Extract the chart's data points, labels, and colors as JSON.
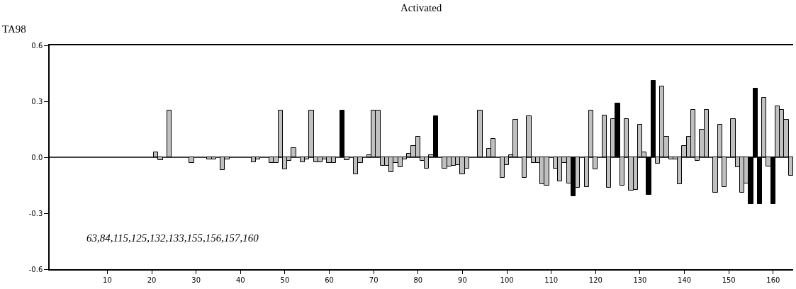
{
  "chart_data": {
    "type": "bar",
    "title": "Activated",
    "ylabel": "TA98",
    "x": [
      1,
      2,
      3,
      4,
      5,
      6,
      7,
      8,
      9,
      10,
      11,
      12,
      13,
      14,
      15,
      16,
      17,
      18,
      19,
      20,
      21,
      22,
      23,
      24,
      25,
      26,
      27,
      28,
      29,
      30,
      31,
      32,
      33,
      34,
      35,
      36,
      37,
      38,
      39,
      40,
      41,
      42,
      43,
      44,
      45,
      46,
      47,
      48,
      49,
      50,
      51,
      52,
      53,
      54,
      55,
      56,
      57,
      58,
      59,
      60,
      61,
      62,
      63,
      64,
      65,
      66,
      67,
      68,
      69,
      70,
      71,
      72,
      73,
      74,
      75,
      76,
      77,
      78,
      79,
      80,
      81,
      82,
      83,
      84,
      85,
      86,
      87,
      88,
      89,
      90,
      91,
      92,
      93,
      94,
      95,
      96,
      97,
      98,
      99,
      100,
      101,
      102,
      103,
      104,
      105,
      106,
      107,
      108,
      109,
      110,
      111,
      112,
      113,
      114,
      115,
      116,
      117,
      118,
      119,
      120,
      121,
      122,
      123,
      124,
      125,
      126,
      127,
      128,
      129,
      130,
      131,
      132,
      133,
      134,
      135,
      136,
      137,
      138,
      139,
      140,
      141,
      142,
      143,
      144,
      145,
      146,
      147,
      148,
      149,
      150,
      151,
      152,
      153,
      154,
      155,
      156,
      157,
      158,
      159,
      160,
      161,
      162,
      163,
      164
    ],
    "values": [
      0,
      0,
      0,
      0,
      0,
      0,
      0,
      0,
      0,
      0,
      0,
      0,
      0,
      0,
      0,
      0,
      0,
      0,
      0,
      0,
      0.025,
      -0.015,
      0,
      0.25,
      0,
      0,
      0,
      0,
      -0.03,
      0,
      0,
      0,
      -0.01,
      -0.01,
      0,
      -0.07,
      -0.01,
      0,
      0,
      0,
      0,
      0,
      -0.025,
      -0.01,
      0,
      0,
      -0.03,
      -0.03,
      0.25,
      -0.065,
      -0.02,
      0.05,
      0,
      -0.025,
      -0.01,
      0.25,
      -0.025,
      -0.025,
      -0.01,
      -0.03,
      -0.03,
      0,
      0.25,
      -0.015,
      0,
      -0.09,
      -0.03,
      0,
      0.01,
      0.25,
      0.25,
      -0.045,
      -0.045,
      -0.08,
      -0.03,
      -0.055,
      -0.01,
      0.02,
      0.06,
      0.11,
      -0.02,
      -0.06,
      0.01,
      0.22,
      0,
      -0.06,
      -0.05,
      -0.045,
      -0.04,
      -0.09,
      -0.06,
      0,
      0,
      0.25,
      0,
      0.045,
      0.1,
      0,
      -0.11,
      -0.04,
      0.01,
      0.2,
      0,
      -0.11,
      0.22,
      -0.03,
      -0.03,
      -0.145,
      -0.15,
      0,
      -0.06,
      -0.13,
      -0.03,
      -0.14,
      -0.21,
      -0.165,
      0,
      -0.16,
      0.25,
      -0.065,
      0,
      0.225,
      -0.165,
      0.205,
      0.29,
      -0.15,
      0.205,
      -0.18,
      -0.175,
      0.175,
      0.025,
      -0.2,
      0.41,
      -0.035,
      0.38,
      0.11,
      -0.01,
      -0.01,
      -0.145,
      0.06,
      0.11,
      0.255,
      -0.02,
      0.15,
      0.255,
      0,
      -0.19,
      0.175,
      -0.16,
      0,
      0.205,
      -0.055,
      -0.19,
      -0.14,
      -0.25,
      0.37,
      -0.25,
      0.32,
      -0.05,
      -0.25,
      0.275,
      0.255,
      0.2,
      -0.1
    ],
    "colors": [
      "#c0c0c0",
      "#c0c0c0",
      "#c0c0c0",
      "#c0c0c0",
      "#c0c0c0",
      "#c0c0c0",
      "#c0c0c0",
      "#c0c0c0",
      "#c0c0c0",
      "#c0c0c0",
      "#c0c0c0",
      "#c0c0c0",
      "#c0c0c0",
      "#c0c0c0",
      "#c0c0c0",
      "#c0c0c0",
      "#c0c0c0",
      "#c0c0c0",
      "#c0c0c0",
      "#c0c0c0",
      "#c0c0c0",
      "#c0c0c0",
      "#c0c0c0",
      "#c0c0c0",
      "#c0c0c0",
      "#c0c0c0",
      "#c0c0c0",
      "#c0c0c0",
      "#c0c0c0",
      "#c0c0c0",
      "#c0c0c0",
      "#c0c0c0",
      "#c0c0c0",
      "#c0c0c0",
      "#c0c0c0",
      "#c0c0c0",
      "#c0c0c0",
      "#c0c0c0",
      "#c0c0c0",
      "#c0c0c0",
      "#c0c0c0",
      "#c0c0c0",
      "#c0c0c0",
      "#c0c0c0",
      "#c0c0c0",
      "#c0c0c0",
      "#c0c0c0",
      "#c0c0c0",
      "#c0c0c0",
      "#c0c0c0",
      "#c0c0c0",
      "#c0c0c0",
      "#c0c0c0",
      "#c0c0c0",
      "#c0c0c0",
      "#c0c0c0",
      "#c0c0c0",
      "#c0c0c0",
      "#c0c0c0",
      "#c0c0c0",
      "#c0c0c0",
      "#c0c0c0",
      "#000000",
      "#c0c0c0",
      "#c0c0c0",
      "#c0c0c0",
      "#c0c0c0",
      "#c0c0c0",
      "#c0c0c0",
      "#c0c0c0",
      "#c0c0c0",
      "#c0c0c0",
      "#c0c0c0",
      "#c0c0c0",
      "#c0c0c0",
      "#c0c0c0",
      "#c0c0c0",
      "#c0c0c0",
      "#c0c0c0",
      "#c0c0c0",
      "#c0c0c0",
      "#c0c0c0",
      "#c0c0c0",
      "#000000",
      "#c0c0c0",
      "#c0c0c0",
      "#c0c0c0",
      "#c0c0c0",
      "#c0c0c0",
      "#c0c0c0",
      "#c0c0c0",
      "#c0c0c0",
      "#c0c0c0",
      "#c0c0c0",
      "#c0c0c0",
      "#c0c0c0",
      "#c0c0c0",
      "#c0c0c0",
      "#c0c0c0",
      "#c0c0c0",
      "#c0c0c0",
      "#c0c0c0",
      "#c0c0c0",
      "#c0c0c0",
      "#c0c0c0",
      "#c0c0c0",
      "#c0c0c0",
      "#c0c0c0",
      "#c0c0c0",
      "#c0c0c0",
      "#c0c0c0",
      "#c0c0c0",
      "#c0c0c0",
      "#c0c0c0",
      "#000000",
      "#c0c0c0",
      "#c0c0c0",
      "#c0c0c0",
      "#c0c0c0",
      "#c0c0c0",
      "#c0c0c0",
      "#c0c0c0",
      "#c0c0c0",
      "#c0c0c0",
      "#000000",
      "#c0c0c0",
      "#c0c0c0",
      "#c0c0c0",
      "#c0c0c0",
      "#c0c0c0",
      "#c0c0c0",
      "#000000",
      "#000000",
      "#c0c0c0",
      "#c0c0c0",
      "#c0c0c0",
      "#c0c0c0",
      "#c0c0c0",
      "#c0c0c0",
      "#c0c0c0",
      "#c0c0c0",
      "#c0c0c0",
      "#c0c0c0",
      "#c0c0c0",
      "#c0c0c0",
      "#c0c0c0",
      "#c0c0c0",
      "#c0c0c0",
      "#c0c0c0",
      "#c0c0c0",
      "#c0c0c0",
      "#c0c0c0",
      "#c0c0c0",
      "#c0c0c0",
      "#000000",
      "#000000",
      "#000000",
      "#c0c0c0",
      "#c0c0c0",
      "#000000",
      "#c0c0c0",
      "#c0c0c0",
      "#c0c0c0",
      "#c0c0c0"
    ],
    "xlim": [
      -3,
      164.5
    ],
    "xticks": [
      10,
      20,
      30,
      40,
      50,
      60,
      70,
      80,
      90,
      100,
      110,
      120,
      130,
      140,
      150,
      160
    ],
    "ylim": [
      -0.6,
      0.6
    ],
    "yticks": [
      {
        "value": 0.6,
        "label": "0.6"
      },
      {
        "value": 0.3,
        "label": "0.3"
      },
      {
        "value": 0,
        "label": "0.0"
      },
      {
        "value": -0.3,
        "label": "-0.3"
      },
      {
        "value": -0.6,
        "label": "-0.6"
      }
    ],
    "ref_lines": [
      {
        "axis": "y",
        "value": 0,
        "color": "#000000"
      }
    ],
    "annotations": [
      "63,84,115,125,132,133,155,156,157,160"
    ]
  }
}
